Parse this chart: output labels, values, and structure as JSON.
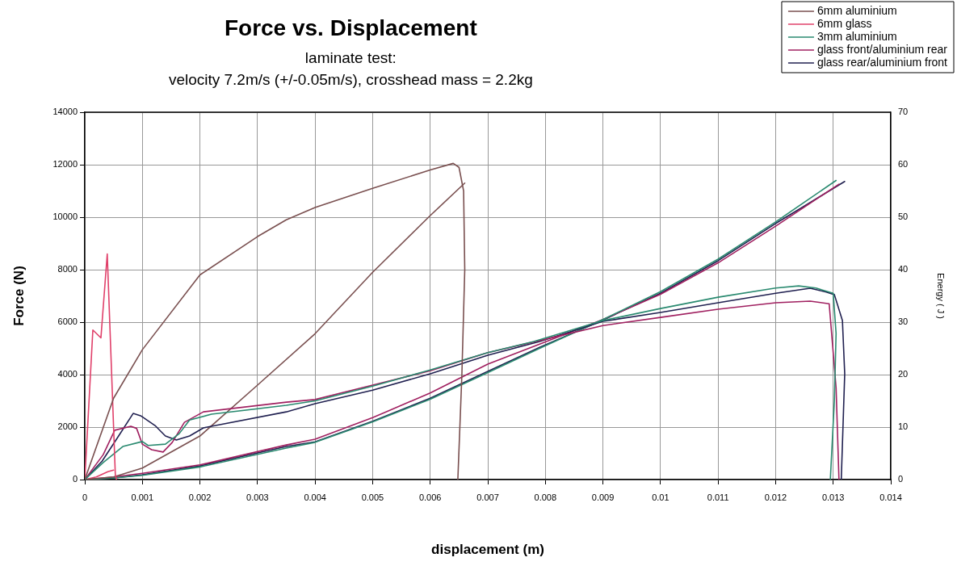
{
  "chart_data": {
    "type": "line",
    "title": "Force vs. Displacement",
    "subtitle": "laminate test:\nvelocity 7.2m/s (+/-0.05m/s), crosshead mass = 2.2kg",
    "xlabel": "displacement (m)",
    "ylabel": "Force (N)",
    "y2label": "Energy ( J )",
    "xlim": [
      0,
      0.014
    ],
    "xticks": [
      0,
      0.001,
      0.002,
      0.003,
      0.004,
      0.005,
      0.006,
      0.007,
      0.008,
      0.009,
      0.01,
      0.011,
      0.012,
      0.013,
      0.014
    ],
    "ylim": [
      0,
      14000
    ],
    "yticks": [
      0,
      2000,
      4000,
      6000,
      8000,
      10000,
      12000,
      14000
    ],
    "y2lim": [
      0,
      70
    ],
    "y2ticks": [
      0,
      10,
      20,
      30,
      40,
      50,
      60,
      70
    ],
    "grid": true,
    "legend": "top right",
    "marker": "none",
    "line_style": "solid",
    "series": [
      {
        "name": "6mm aluminium",
        "color": "#7a5050",
        "x": [
          0,
          0.0005,
          0.001,
          0.002,
          0.003,
          0.0035,
          0.004,
          0.005,
          0.006,
          0.0064,
          0.0065,
          0.00658,
          0.0066,
          0.00655,
          0.00648
        ],
        "values": [
          0,
          3100,
          4950,
          7800,
          9260,
          9900,
          10370,
          11100,
          11800,
          12050,
          11900,
          11000,
          8000,
          4000,
          0
        ]
      },
      {
        "name": "6mm glass",
        "color": "#e0406a",
        "x": [
          0,
          0.00014,
          0.00028,
          0.00039,
          0.00053,
          0.00055
        ],
        "values": [
          0,
          5700,
          5400,
          8600,
          200,
          0
        ]
      },
      {
        "name": "3mm aluminium",
        "color": "#2a8a70",
        "x": [
          0,
          0.00032,
          0.00066,
          0.001,
          0.0011,
          0.0014,
          0.00164,
          0.00182,
          0.0022,
          0.0035,
          0.004,
          0.005,
          0.006,
          0.007,
          0.0078,
          0.009,
          0.01,
          0.011,
          0.012,
          0.0124,
          0.0127,
          0.013,
          0.01305,
          0.01302,
          0.01295
        ],
        "values": [
          0,
          650,
          1260,
          1450,
          1300,
          1350,
          1750,
          2270,
          2490,
          2830,
          3000,
          3560,
          4180,
          4840,
          5260,
          6060,
          6520,
          6950,
          7300,
          7380,
          7300,
          7100,
          5570,
          3000,
          0
        ]
      },
      {
        "name": "glass front/aluminium rear",
        "color": "#a02060",
        "x": [
          0,
          0.00032,
          0.00052,
          0.0008,
          0.0009,
          0.001,
          0.00116,
          0.00136,
          0.00152,
          0.00173,
          0.00206,
          0.0035,
          0.004,
          0.005,
          0.006,
          0.007,
          0.008,
          0.009,
          0.01,
          0.011,
          0.012,
          0.0126,
          0.01293,
          0.01305,
          0.0131
        ],
        "values": [
          0,
          950,
          1880,
          2030,
          1950,
          1350,
          1140,
          1050,
          1420,
          2180,
          2580,
          2950,
          3050,
          3600,
          4150,
          4840,
          5350,
          5870,
          6180,
          6490,
          6740,
          6800,
          6700,
          3500,
          0
        ]
      },
      {
        "name": "glass rear/aluminium front",
        "color": "#202050",
        "x": [
          0,
          0.0003,
          0.00056,
          0.00084,
          0.00098,
          0.00122,
          0.0014,
          0.00159,
          0.00182,
          0.00206,
          0.0035,
          0.004,
          0.005,
          0.006,
          0.007,
          0.0079,
          0.009,
          0.01,
          0.011,
          0.012,
          0.0126,
          0.01288,
          0.01302,
          0.01316,
          0.0132,
          0.01314
        ],
        "values": [
          0,
          700,
          1570,
          2520,
          2420,
          2060,
          1660,
          1510,
          1660,
          1970,
          2580,
          2890,
          3410,
          4030,
          4740,
          5260,
          6030,
          6370,
          6740,
          7100,
          7290,
          7150,
          7050,
          6060,
          4030,
          0
        ]
      },
      {
        "color": "#7a5050",
        "axis": "y2",
        "x": [
          0,
          0.0005,
          0.001,
          0.002,
          0.003,
          0.004,
          0.005,
          0.006,
          0.0066
        ],
        "values": [
          0,
          0.5,
          2.2,
          8.3,
          18,
          27.8,
          39.5,
          50.3,
          56.5
        ]
      },
      {
        "color": "#e0406a",
        "axis": "y2",
        "x": [
          0,
          0.0002,
          0.0004,
          0.0005
        ],
        "values": [
          0,
          0.5,
          1.5,
          1.8
        ]
      },
      {
        "color": "#2a8a70",
        "axis": "y2",
        "x": [
          0,
          0.0005,
          0.001,
          0.002,
          0.0035,
          0.004,
          0.005,
          0.006,
          0.007,
          0.0079,
          0.009,
          0.01,
          0.011,
          0.012,
          0.01305
        ],
        "values": [
          0,
          0.3,
          0.8,
          2.4,
          6.0,
          7.1,
          11.0,
          15.3,
          20.4,
          25.0,
          30.5,
          35.8,
          42.0,
          49.1,
          57
        ]
      },
      {
        "color": "#a02060",
        "axis": "y2",
        "x": [
          0,
          0.0005,
          0.001,
          0.002,
          0.0035,
          0.004,
          0.005,
          0.006,
          0.007,
          0.0079,
          0.009,
          0.01,
          0.011,
          0.012,
          0.0131
        ],
        "values": [
          0,
          0.5,
          1.2,
          2.8,
          6.6,
          7.7,
          11.8,
          16.5,
          22,
          25.8,
          30.5,
          35.3,
          41.3,
          48.3,
          56.3
        ]
      },
      {
        "color": "#202050",
        "axis": "y2",
        "x": [
          0,
          0.0005,
          0.001,
          0.002,
          0.0035,
          0.004,
          0.005,
          0.006,
          0.007,
          0.0079,
          0.009,
          0.01,
          0.011,
          0.012,
          0.0132
        ],
        "values": [
          0,
          0.3,
          0.9,
          2.6,
          6.3,
          7.2,
          11.1,
          15.5,
          20.6,
          25.2,
          30.4,
          35.5,
          41.7,
          48.8,
          56.8
        ]
      }
    ]
  }
}
